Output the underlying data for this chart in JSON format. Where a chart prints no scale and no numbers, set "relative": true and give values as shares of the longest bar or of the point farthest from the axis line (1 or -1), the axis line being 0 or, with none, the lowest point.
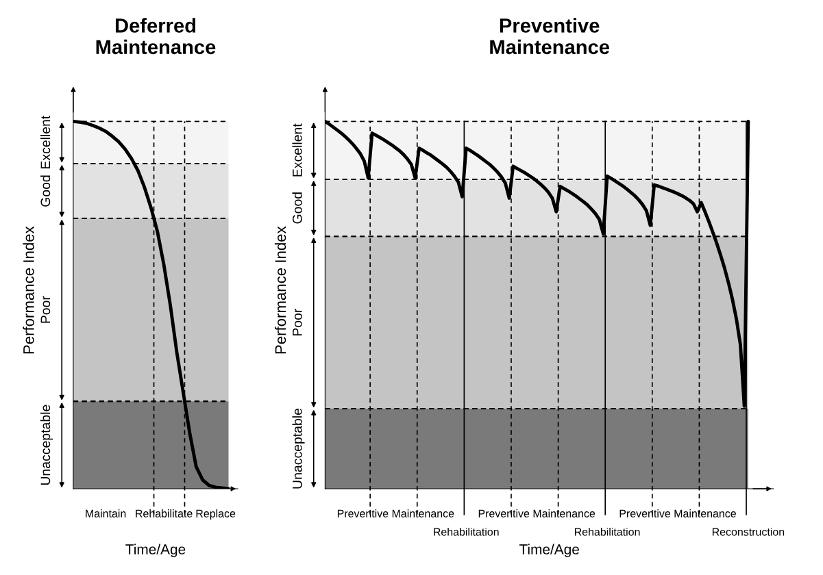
{
  "chart_data": [
    {
      "type": "line",
      "title": "Deferred\nMaintenance",
      "xlabel": "Time/Age",
      "ylabel": "Performance Index",
      "relative": true,
      "legend": false,
      "marker": "none",
      "line_style": "solid",
      "categories": [
        null,
        null,
        null,
        null,
        null,
        "Maintain",
        null,
        null,
        null,
        null,
        null,
        null,
        null,
        null,
        "Rehabilitate",
        null,
        null,
        null,
        null,
        null,
        null,
        null,
        "Replace",
        null,
        null
      ],
      "series": [
        {
          "color": "#000000",
          "values": [
            1.0,
            0.998,
            0.995,
            0.989,
            0.982,
            0.973,
            0.96,
            0.945,
            0.925,
            0.899,
            0.866,
            0.821,
            0.766,
            0.701,
            0.61,
            0.5,
            0.372,
            0.262,
            0.152,
            0.06,
            0.024,
            0.009,
            0.004,
            0.002,
            0.0
          ]
        }
      ],
      "bands": [
        {
          "axis": "y",
          "from": 0.885,
          "to": 1.0,
          "label": "Excellent",
          "color": "#f4f4f4"
        },
        {
          "axis": "y",
          "from": 0.736,
          "to": 0.885,
          "label": "Good",
          "color": "#e2e2e2"
        },
        {
          "axis": "y",
          "from": 0.238,
          "to": 0.736,
          "label": "Poor",
          "color": "#c4c4c4"
        },
        {
          "axis": "y",
          "from": 0.0,
          "to": 0.238,
          "label": "Unacceptable",
          "color": "#7a7a7a"
        }
      ]
    },
    {
      "type": "line",
      "title": "Preventive\nMaintenance",
      "xlabel": "Time/Age",
      "ylabel": "Performance Index",
      "relative": true,
      "legend": false,
      "marker": "none",
      "line_style": "solid",
      "categories": [
        null,
        null,
        null,
        null,
        null,
        null,
        null,
        null,
        null,
        null,
        null,
        null,
        null,
        null,
        null,
        null,
        null,
        null,
        "Preventive Maintenance",
        null,
        null,
        null,
        null,
        null,
        null,
        null,
        null,
        null,
        null,
        null,
        null,
        null,
        null,
        null,
        null,
        null,
        "Rehabilitation",
        null,
        null,
        null,
        null,
        null,
        null,
        null,
        null,
        null,
        null,
        null,
        null,
        null,
        null,
        null,
        null,
        null,
        "Preventive Maintenance",
        null,
        null,
        null,
        null,
        null,
        null,
        null,
        null,
        null,
        null,
        null,
        null,
        null,
        null,
        null,
        null,
        null,
        "Rehabilitation",
        null,
        null,
        null,
        null,
        null,
        null,
        null,
        null,
        null,
        null,
        null,
        null,
        null,
        null,
        null,
        null,
        null,
        "Preventive Maintenance",
        null,
        null,
        null,
        null,
        null,
        null,
        null,
        null,
        null,
        null,
        null,
        null,
        null,
        null,
        null,
        null,
        null,
        "Reconstruction"
      ],
      "series": [
        {
          "color": "#000000",
          "values": [
            1.0,
            0.993,
            0.985,
            0.977,
            0.969,
            0.96,
            0.95,
            0.939,
            0.926,
            0.912,
            0.892,
            0.846,
            0.968,
            0.962,
            0.956,
            0.95,
            0.943,
            0.936,
            0.928,
            0.92,
            0.91,
            0.898,
            0.883,
            0.846,
            0.927,
            0.921,
            0.914,
            0.908,
            0.9,
            0.892,
            0.884,
            0.875,
            0.864,
            0.851,
            0.835,
            0.795,
            0.927,
            0.921,
            0.914,
            0.907,
            0.899,
            0.891,
            0.883,
            0.873,
            0.862,
            0.849,
            0.832,
            0.791,
            0.878,
            0.872,
            0.866,
            0.86,
            0.853,
            0.846,
            0.838,
            0.829,
            0.819,
            0.807,
            0.791,
            0.754,
            0.823,
            0.817,
            0.811,
            0.804,
            0.797,
            0.789,
            0.781,
            0.772,
            0.761,
            0.749,
            0.733,
            0.694,
            0.851,
            0.845,
            0.838,
            0.831,
            0.824,
            0.816,
            0.807,
            0.798,
            0.787,
            0.774,
            0.757,
            0.717,
            0.827,
            0.824,
            0.82,
            0.816,
            0.812,
            0.808,
            0.803,
            0.798,
            0.792,
            0.785,
            0.776,
            0.754,
            0.779,
            0.753,
            0.726,
            0.697,
            0.667,
            0.634,
            0.599,
            0.559,
            0.514,
            0.461,
            0.392,
            0.225,
            1.0
          ]
        }
      ],
      "bands": [
        {
          "axis": "y",
          "from": 0.842,
          "to": 1.0,
          "label": "Excellent",
          "color": "#f4f4f4"
        },
        {
          "axis": "y",
          "from": 0.687,
          "to": 0.842,
          "label": "Good",
          "color": "#e2e2e2"
        },
        {
          "axis": "y",
          "from": 0.218,
          "to": 0.687,
          "label": "Poor",
          "color": "#c4c4c4"
        },
        {
          "axis": "y",
          "from": 0.0,
          "to": 0.218,
          "label": "Unacceptable",
          "color": "#7a7a7a"
        }
      ]
    }
  ]
}
